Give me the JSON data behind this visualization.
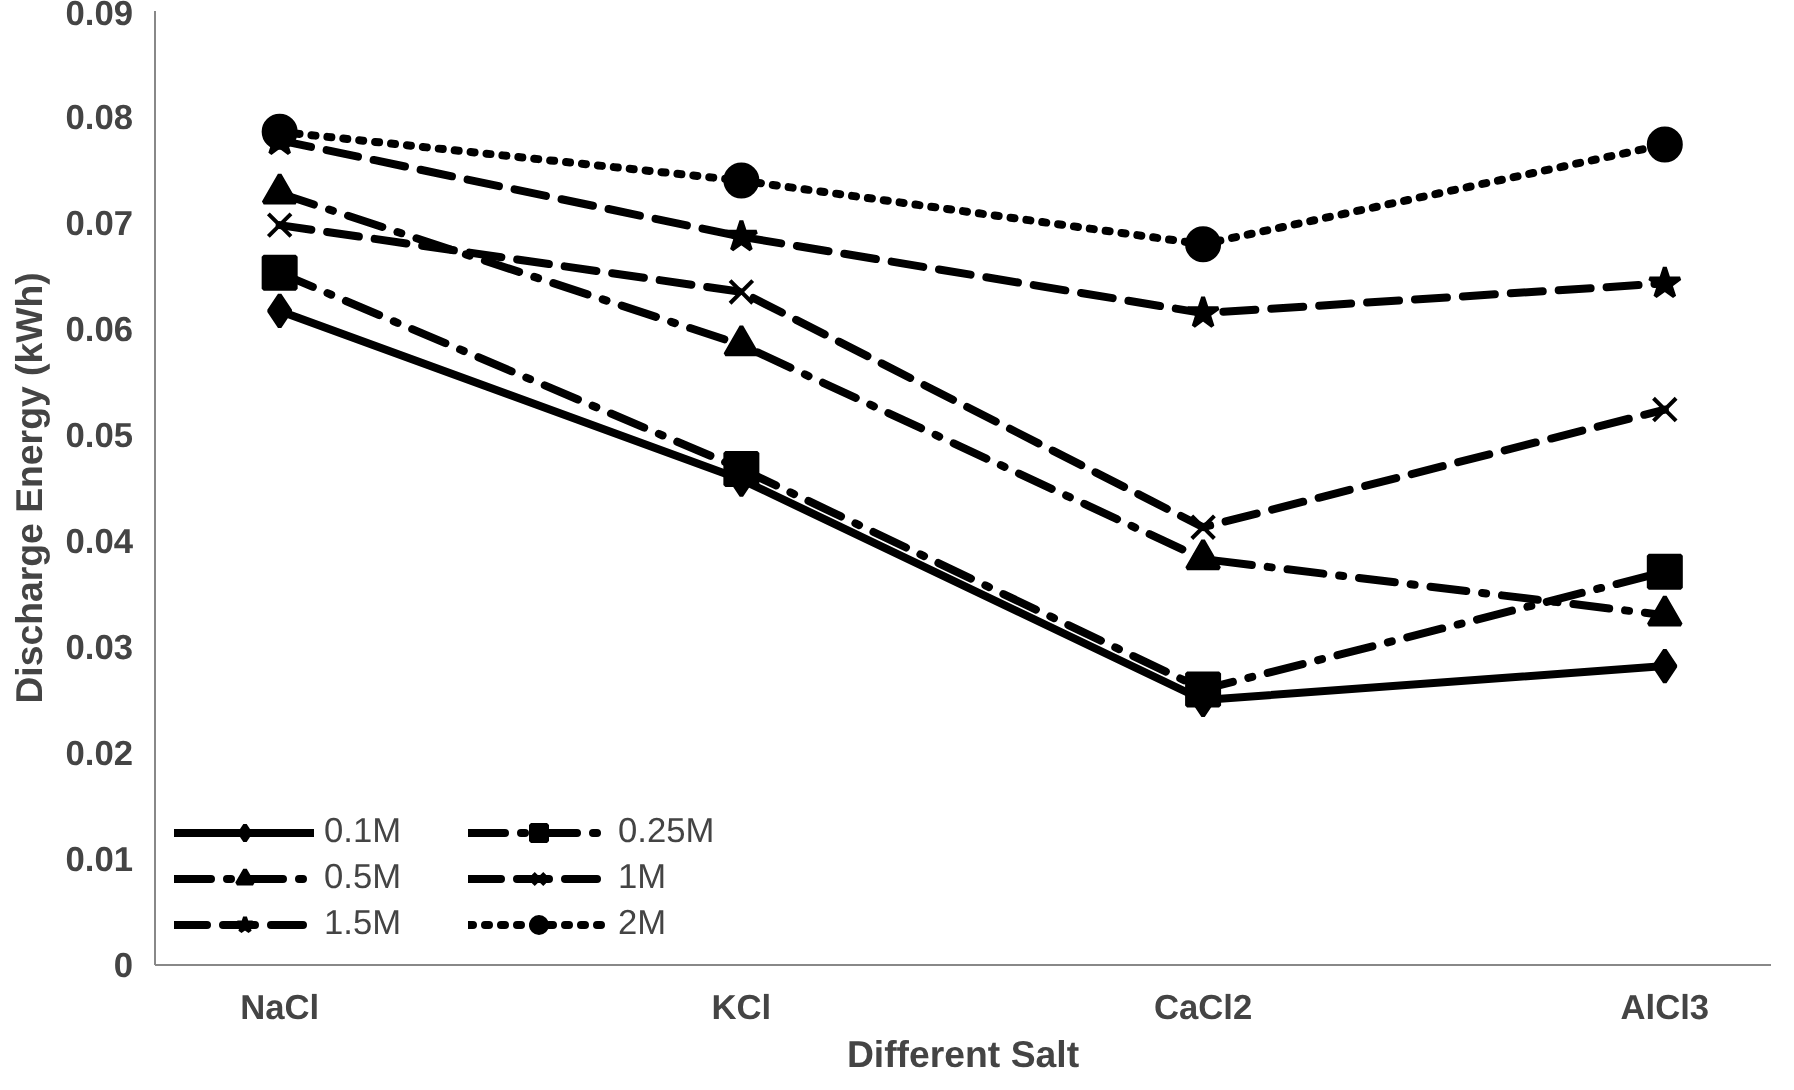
{
  "chart_data": {
    "type": "line",
    "xlabel": "Different Salt",
    "ylabel": "Discharge Energy (kWh)",
    "categories": [
      "NaCl",
      "KCl",
      "CaCl2",
      "AlCl3"
    ],
    "ylim": [
      0,
      0.09
    ],
    "yticks": [
      0,
      0.01,
      0.02,
      0.03,
      0.04,
      0.05,
      0.06,
      0.07,
      0.08,
      0.09
    ],
    "grid": false,
    "legend": "bottom left",
    "series": [
      {
        "name": "0.1M",
        "color": "#000000",
        "marker": "diamond",
        "line_style": "solid",
        "values": [
          0.0617,
          0.0458,
          0.025,
          0.0282
        ]
      },
      {
        "name": "0.25M",
        "color": "#000000",
        "marker": "square",
        "line_style": "dashdot",
        "values": [
          0.0653,
          0.0468,
          0.026,
          0.0371
        ]
      },
      {
        "name": "0.5M",
        "color": "#000000",
        "marker": "triangle",
        "line_style": "dashdot",
        "values": [
          0.0728,
          0.0585,
          0.0383,
          0.033
        ]
      },
      {
        "name": "1M",
        "color": "#000000",
        "marker": "cross",
        "line_style": "dashed",
        "values": [
          0.0698,
          0.0635,
          0.0413,
          0.0524
        ]
      },
      {
        "name": "1.5M",
        "color": "#000000",
        "marker": "star",
        "line_style": "dashed",
        "values": [
          0.0778,
          0.0687,
          0.0615,
          0.0643
        ]
      },
      {
        "name": "2M",
        "color": "#000000",
        "marker": "circle",
        "line_style": "dotted",
        "values": [
          0.0786,
          0.074,
          0.068,
          0.0774
        ]
      }
    ]
  }
}
